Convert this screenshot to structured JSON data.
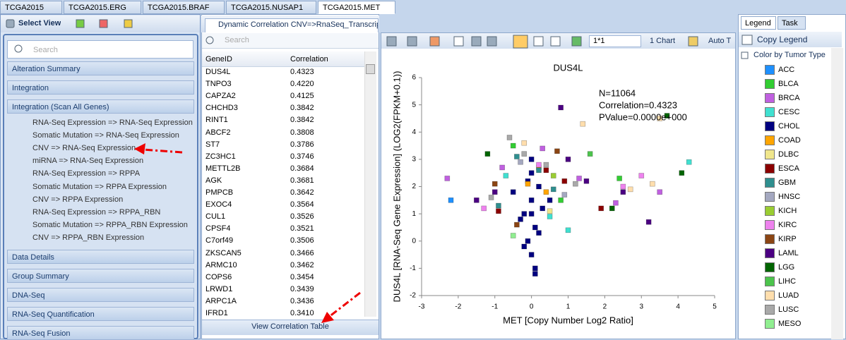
{
  "tabs": [
    "TCGA2015",
    "TCGA2015.ERG",
    "TCGA2015.BRAF",
    "TCGA2015.NUSAP1",
    "TCGA2015.MET"
  ],
  "left_panel": {
    "title": "Select View",
    "search": "Search",
    "sections": [
      {
        "title": "Alteration Summary"
      },
      {
        "title": "Integration"
      },
      {
        "title": "Integration (Scan All Genes)",
        "items": [
          "RNA-Seq Expression => RNA-Seq Expression",
          "Somatic Mutation => RNA-Seq Expression",
          "CNV => RNA-Seq Expression",
          "miRNA => RNA-Seq Expression",
          "RNA-Seq Expression => RPPA",
          "Somatic Mutation => RPPA Expression",
          "CNV => RPPA Expression",
          "RNA-Seq Expression => RPPA_RBN",
          "Somatic Mutation => RPPA_RBN Expression",
          "CNV => RPPA_RBN Expression"
        ]
      },
      {
        "title": "Data Details"
      },
      {
        "title": "Group Summary"
      },
      {
        "title": "DNA-Seq"
      },
      {
        "title": "RNA-Seq Quantification"
      },
      {
        "title": "RNA-Seq Fusion"
      }
    ]
  },
  "correlation_panel": {
    "tab": "Dynamic Correlation CNV=>RnaSeq_Transcript",
    "search": "Search",
    "columns": [
      "GeneID",
      "Correlation"
    ],
    "rows": [
      [
        "DUS4L",
        "0.4323"
      ],
      [
        "TNPO3",
        "0.4220"
      ],
      [
        "CAPZA2",
        "0.4125"
      ],
      [
        "CHCHD3",
        "0.3842"
      ],
      [
        "RINT1",
        "0.3842"
      ],
      [
        "ABCF2",
        "0.3808"
      ],
      [
        "ST7",
        "0.3786"
      ],
      [
        "ZC3HC1",
        "0.3746"
      ],
      [
        "METTL2B",
        "0.3684"
      ],
      [
        "AGK",
        "0.3681"
      ],
      [
        "PMPCB",
        "0.3642"
      ],
      [
        "EXOC4",
        "0.3564"
      ],
      [
        "CUL1",
        "0.3526"
      ],
      [
        "CPSF4",
        "0.3521"
      ],
      [
        "C7orf49",
        "0.3506"
      ],
      [
        "ZKSCAN5",
        "0.3466"
      ],
      [
        "ARMC10",
        "0.3462"
      ],
      [
        "COPS6",
        "0.3454"
      ],
      [
        "LRWD1",
        "0.3439"
      ],
      [
        "ARPC1A",
        "0.3436"
      ],
      [
        "IFRD1",
        "0.3410"
      ]
    ],
    "button": "View Correlation Table"
  },
  "chart_toolbar": {
    "layout": "1*1",
    "chart_count": "1 Chart",
    "auto": "Auto T"
  },
  "chart": {
    "type": "scatter",
    "title": "DUS4L",
    "x_label": "MET [Copy Number Log2 Ratio]",
    "y_label": "DUS4L [RNA-Seq Gene Expression] (LOG2(FPKM+0.1))",
    "annotations": [
      "N=11064",
      "Correlation=0.4323",
      "PValue=0.0000e+000"
    ],
    "xlim": [
      -3,
      5
    ],
    "ylim": [
      -2,
      6
    ],
    "xticks": [
      -3,
      -2,
      -1,
      0,
      1,
      2,
      3,
      4,
      5
    ],
    "yticks": [
      -2,
      -1,
      0,
      1,
      2,
      3,
      4,
      5,
      6
    ],
    "legend_title": "Color by Tumor Type",
    "series": [
      {
        "name": "ACC",
        "color": "#1e90ff",
        "x": [
          -2.2
        ],
        "y": [
          1.5
        ]
      },
      {
        "name": "BLCA",
        "color": "#32cd32",
        "x": [
          2.4,
          -0.5,
          0.8
        ],
        "y": [
          2.3,
          3.5,
          1.5
        ]
      },
      {
        "name": "BRCA",
        "color": "#c060e0",
        "x": [
          1.3,
          3.5,
          -2.3,
          -0.8,
          0.3,
          2.3
        ],
        "y": [
          2.3,
          1.8,
          2.3,
          2.7,
          3.4,
          1.4
        ]
      },
      {
        "name": "CESC",
        "color": "#40e0d0",
        "x": [
          4.3,
          -0.7,
          0.5,
          1
        ],
        "y": [
          2.9,
          2.4,
          0.9,
          0.4
        ]
      },
      {
        "name": "CHOL",
        "color": "#000080",
        "x": [
          0,
          -0.2,
          0.2,
          0.1,
          -0.1,
          0,
          0.3,
          -0.3,
          0,
          0.1,
          -0.5,
          0.5,
          0,
          -0.2,
          0.2,
          0,
          0.1,
          -0.1
        ],
        "y": [
          1.5,
          1,
          2,
          0.5,
          0,
          2.5,
          1.2,
          0.8,
          -0.5,
          -1,
          1.8,
          1.5,
          3,
          -0.2,
          0.3,
          1,
          -1.2,
          2.2
        ]
      },
      {
        "name": "COAD",
        "color": "#ffa500",
        "x": [
          0.2,
          0.4,
          -0.1
        ],
        "y": [
          2.7,
          1.8,
          2.1
        ]
      },
      {
        "name": "DLBC",
        "color": "#f0e68c",
        "x": [
          0.5
        ],
        "y": [
          1.1
        ]
      },
      {
        "name": "ESCA",
        "color": "#8b0000",
        "x": [
          0.4,
          -0.9,
          1.9,
          0.9
        ],
        "y": [
          2.6,
          1.1,
          1.2,
          2.2
        ]
      },
      {
        "name": "GBM",
        "color": "#2f8f8f",
        "x": [
          -0.4,
          0.2,
          0.6,
          -0.9
        ],
        "y": [
          3.1,
          2.6,
          1.9,
          1.3
        ]
      },
      {
        "name": "HNSC",
        "color": "#a4a8c0",
        "x": [
          -0.3,
          0.9
        ],
        "y": [
          2.9,
          1.7
        ]
      },
      {
        "name": "KICH",
        "color": "#9acd32",
        "x": [
          0.6
        ],
        "y": [
          2.4
        ]
      },
      {
        "name": "KIRC",
        "color": "#ee82ee",
        "x": [
          2.5,
          -1.3,
          0.2,
          3
        ],
        "y": [
          2,
          1.2,
          2.8,
          2.4
        ]
      },
      {
        "name": "KIRP",
        "color": "#8b4513",
        "x": [
          -1,
          -0.4,
          0.7
        ],
        "y": [
          2.1,
          0.6,
          3.3
        ]
      },
      {
        "name": "LAML",
        "color": "#4b0082",
        "x": [
          0.8,
          1,
          1.5,
          -1.5,
          -1,
          3.2,
          2.5
        ],
        "y": [
          4.9,
          3,
          2.2,
          1.5,
          1.8,
          0.7,
          1.8
        ]
      },
      {
        "name": "LGG",
        "color": "#006400",
        "x": [
          3.7,
          4.1,
          2.2,
          -1.2
        ],
        "y": [
          4.6,
          2.5,
          1.2,
          3.2
        ]
      },
      {
        "name": "LIHC",
        "color": "#4cc44c",
        "x": [
          1.6
        ],
        "y": [
          3.2
        ]
      },
      {
        "name": "LUAD",
        "color": "#ffdead",
        "x": [
          1.4,
          2.7,
          3.3,
          3.5,
          -0.2
        ],
        "y": [
          4.3,
          1.9,
          2.1,
          4.5,
          3.6
        ]
      },
      {
        "name": "LUSC",
        "color": "#a9a9a9",
        "x": [
          -0.6,
          -0.2,
          0.4,
          1.2,
          -1.1
        ],
        "y": [
          3.8,
          3.2,
          2.8,
          2.1,
          1.6
        ]
      },
      {
        "name": "MESO",
        "color": "#90ee90",
        "x": [
          -0.5
        ],
        "y": [
          0.2
        ]
      }
    ]
  },
  "legend_panel": {
    "tabs": [
      "Legend",
      "Task"
    ],
    "copy": "Copy Legend"
  }
}
